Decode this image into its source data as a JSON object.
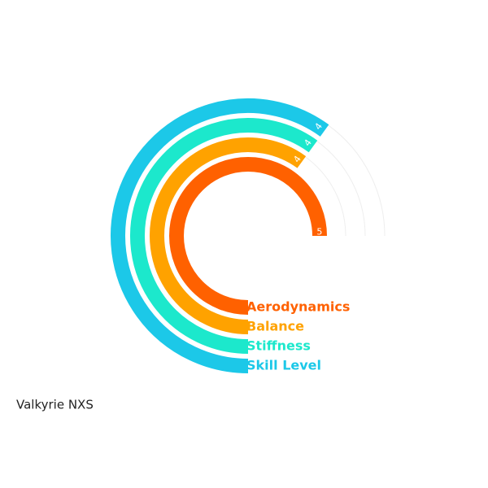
{
  "chart_data": {
    "type": "radial-bar",
    "title": "Valkyrie NXS",
    "categories": [
      "Aerodynamics",
      "Balance",
      "Stiffness",
      "Skill Level"
    ],
    "values": [
      5,
      4,
      4,
      4
    ],
    "colors": [
      "#ff6100",
      "#ffa200",
      "#1ce8cc",
      "#1cc8e8"
    ],
    "xlim": [
      0,
      5
    ]
  }
}
